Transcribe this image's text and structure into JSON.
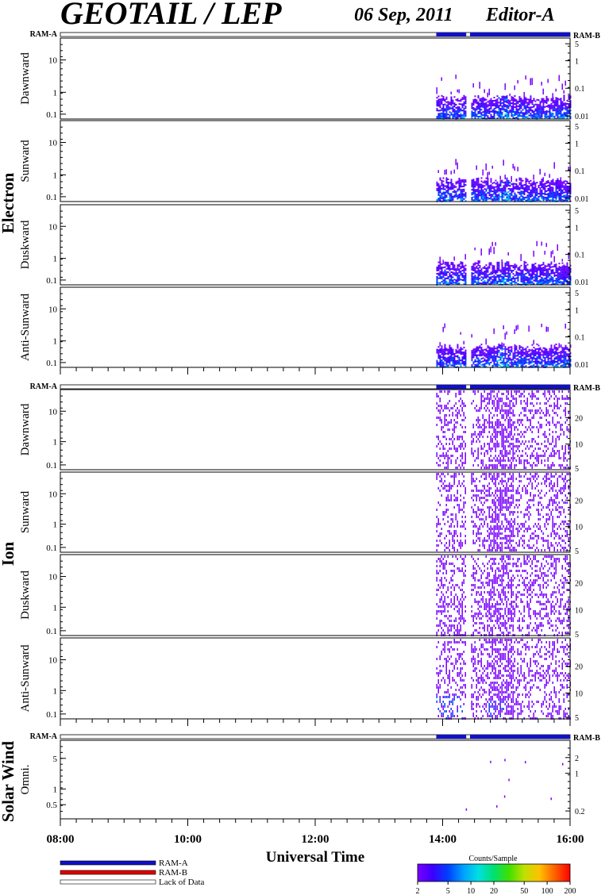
{
  "header": {
    "title": "GEOTAIL / LEP",
    "date": "06 Sep, 2011",
    "editor": "Editor-A"
  },
  "colors": {
    "ram_a": "#1010c8",
    "ram_b": "#e00000",
    "background": "#ffffff"
  },
  "chart_data": {
    "type": "heatmap",
    "xlabel": "Universal Time",
    "x_tick_labels": [
      "08:00",
      "10:00",
      "12:00",
      "14:00",
      "16:00"
    ],
    "x_range_hours": [
      8,
      16
    ],
    "data_start_hour": 13.9,
    "data_gap_hours": [
      14.37,
      14.43
    ],
    "ram_a_label": "RAM-A",
    "ram_b_label": "RAM-B",
    "groups": [
      {
        "name": "Electron",
        "panels": [
          {
            "label": "Dawnward",
            "y_ticks": [
              "10",
              "1",
              "0.1"
            ],
            "right_ticks": [
              "5",
              "1",
              "0.1",
              "0.01"
            ]
          },
          {
            "label": "Sunward",
            "y_ticks": [
              "10",
              "1",
              "0.1"
            ],
            "right_ticks": [
              "5",
              "1",
              "0.1",
              "0.01"
            ]
          },
          {
            "label": "Duskward",
            "y_ticks": [
              "10",
              "1",
              "0.1"
            ],
            "right_ticks": [
              "5",
              "1",
              "0.1",
              "0.01"
            ]
          },
          {
            "label": "Anti-Sunward",
            "y_ticks": [
              "10",
              "1",
              "0.1"
            ],
            "right_ticks": [
              "5",
              "1",
              "0.1",
              "0.01"
            ]
          }
        ]
      },
      {
        "name": "Ion",
        "panels": [
          {
            "label": "Dawnward",
            "y_ticks": [
              "10",
              "1",
              "0.1"
            ],
            "right_ticks": [
              "20",
              "10",
              "5"
            ]
          },
          {
            "label": "Sunward",
            "y_ticks": [
              "10",
              "1",
              "0.1"
            ],
            "right_ticks": [
              "20",
              "10",
              "5"
            ]
          },
          {
            "label": "Duskward",
            "y_ticks": [
              "10",
              "1",
              "0.1"
            ],
            "right_ticks": [
              "20",
              "10",
              "5"
            ]
          },
          {
            "label": "Anti-Sunward",
            "y_ticks": [
              "10",
              "1",
              "0.1"
            ],
            "right_ticks": [
              "20",
              "10",
              "5"
            ]
          }
        ]
      },
      {
        "name": "Solar Wind",
        "panels": [
          {
            "label": "Omni.",
            "y_ticks": [
              "5",
              "1",
              "0.5"
            ],
            "right_ticks": [
              "2",
              "1",
              "0.2"
            ]
          }
        ]
      }
    ],
    "legend": [
      {
        "label": "RAM-A",
        "color": "#1010c8"
      },
      {
        "label": "RAM-B",
        "color": "#e00000"
      },
      {
        "label": "Lack of Data",
        "color": "#ffffff"
      }
    ],
    "colorbar": {
      "title": "Counts/Sample",
      "ticks": [
        "2",
        "5",
        "10",
        "20",
        "50",
        "100",
        "200"
      ],
      "colors": [
        "#7a00ff",
        "#3a00ff",
        "#0040ff",
        "#00a0ff",
        "#00e0e0",
        "#00e070",
        "#40e000",
        "#c0e000",
        "#ffc000",
        "#ff6000",
        "#ff0000"
      ]
    }
  }
}
